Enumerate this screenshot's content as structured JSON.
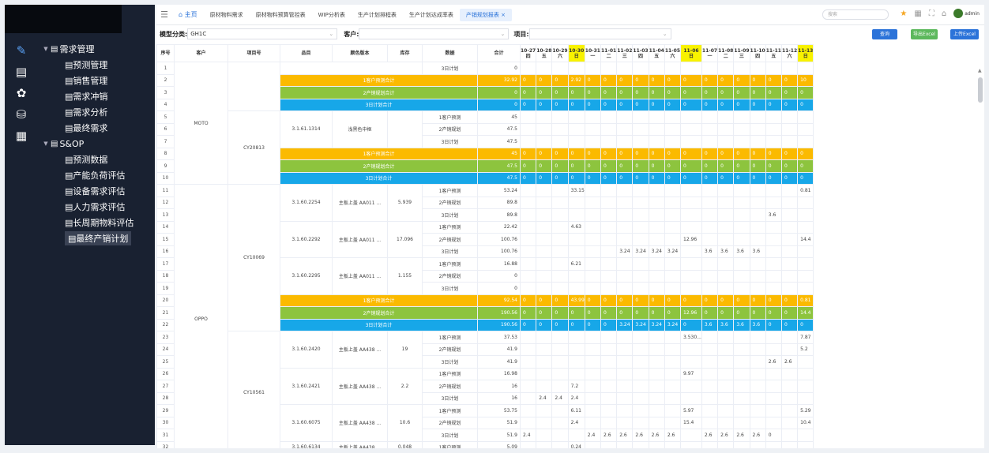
{
  "sidebar": {
    "rail_icons": [
      "edit-icon",
      "document-icon",
      "settings-icon",
      "database-icon",
      "dashboard-icon"
    ],
    "groups": [
      {
        "label": "需求管理",
        "items": [
          "预测管理",
          "销售管理",
          "需求冲销",
          "需求分析",
          "最终需求"
        ]
      },
      {
        "label": "S&OP",
        "items": [
          "预测数据",
          "产能负荷评估",
          "设备需求评估",
          "人力需求评估",
          "长周期物料评估",
          "最终产销计划"
        ]
      }
    ]
  },
  "header": {
    "tabs": [
      "主页",
      "原材物料需求",
      "原材物料预算管控表",
      "WIP分析表",
      "生产计划排程表",
      "生产计划达成率表",
      "产销规划报表"
    ],
    "search_placeholder": "搜索",
    "user": "admin"
  },
  "filters": {
    "model_label": "模型分类:",
    "model_value": "GH1C",
    "customer_label": "客户:",
    "customer_value": "",
    "project_label": "项目:",
    "project_value": ""
  },
  "buttons": {
    "query": "查询",
    "export": "导出Excel",
    "upload": "上传Excel"
  },
  "colors": {
    "orange": "#fbba00",
    "green": "#8dc43e",
    "blue": "#17a7e8",
    "highlight": "#f8f200",
    "primary": "#2b73d9",
    "export": "#5cb85c"
  },
  "table": {
    "columns": [
      "序号",
      "客户",
      "项目号",
      "品目",
      "颜色版本",
      "库存",
      "数据",
      "合计"
    ],
    "dates": [
      [
        "10-27",
        "四"
      ],
      [
        "10-28",
        "五"
      ],
      [
        "10-29",
        "六"
      ],
      [
        "10-30",
        "日"
      ],
      [
        "10-31",
        "一"
      ],
      [
        "11-01",
        "二"
      ],
      [
        "11-02",
        "三"
      ],
      [
        "11-03",
        "四"
      ],
      [
        "11-04",
        "五"
      ],
      [
        "11-05",
        "六"
      ],
      [
        "11-06",
        "日"
      ],
      [
        "11-07",
        "一"
      ],
      [
        "11-08",
        "二"
      ],
      [
        "11-09",
        "三"
      ],
      [
        "11-10",
        "四"
      ],
      [
        "11-11",
        "五"
      ],
      [
        "11-12",
        "六"
      ],
      [
        "11-13",
        "日"
      ]
    ],
    "highlight_dates": [
      3,
      10,
      17
    ],
    "rows": [
      {
        "t": "x",
        "label": "3日计划",
        "total": "0"
      },
      {
        "t": "s1",
        "label": "1客户预测合计",
        "total": "32.92",
        "v": [
          "0",
          "0",
          "0",
          "2.92",
          "0",
          "0",
          "0",
          "0",
          "0",
          "0",
          "0",
          "0",
          "0",
          "0",
          "0",
          "0",
          "0",
          "10"
        ]
      },
      {
        "t": "s2",
        "label": "2产销规划合计",
        "total": "0",
        "v": [
          "0",
          "0",
          "0",
          "0",
          "0",
          "0",
          "0",
          "0",
          "0",
          "0",
          "0",
          "0",
          "0",
          "0",
          "0",
          "0",
          "0",
          "0"
        ]
      },
      {
        "t": "s3",
        "label": "3日计划合计",
        "total": "0",
        "v": [
          "0",
          "0",
          "0",
          "0",
          "0",
          "0",
          "0",
          "0",
          "0",
          "0",
          "0",
          "0",
          "0",
          "0",
          "0",
          "0",
          "0",
          "0"
        ]
      },
      {
        "t": "d",
        "item": "3.1.61.1314",
        "color": "浅黑色中框",
        "stock": "",
        "label": "1客户预测",
        "total": "45",
        "v": {}
      },
      {
        "t": "d",
        "label": "2产销规划",
        "total": "47.5",
        "v": {}
      },
      {
        "t": "d",
        "label": "3日计划",
        "total": "47.5",
        "v": {}
      },
      {
        "t": "s1",
        "label": "1客户预测合计",
        "total": "45",
        "v": [
          "0",
          "0",
          "0",
          "0",
          "0",
          "0",
          "0",
          "0",
          "0",
          "0",
          "0",
          "0",
          "0",
          "0",
          "0",
          "0",
          "0",
          "0"
        ]
      },
      {
        "t": "s2",
        "label": "2产销规划合计",
        "total": "47.5",
        "v": [
          "0",
          "0",
          "0",
          "0",
          "0",
          "0",
          "0",
          "0",
          "0",
          "0",
          "0",
          "0",
          "0",
          "0",
          "0",
          "0",
          "0",
          "0"
        ]
      },
      {
        "t": "s3",
        "label": "3日计划合计",
        "total": "47.5",
        "v": [
          "0",
          "0",
          "0",
          "0",
          "0",
          "0",
          "0",
          "0",
          "0",
          "0",
          "0",
          "0",
          "0",
          "0",
          "0",
          "0",
          "0",
          "0"
        ]
      },
      {
        "t": "d",
        "item": "3.1.60.2254",
        "color": "主板上盖 AA011 ...",
        "stock": "5.939",
        "label": "1客户预测",
        "total": "53.24",
        "v": {
          "3": "33.15",
          "17": "0.81"
        }
      },
      {
        "t": "d",
        "label": "2产销规划",
        "total": "89.8",
        "v": {}
      },
      {
        "t": "d",
        "label": "3日计划",
        "total": "89.8",
        "v": {
          "15": "3.6"
        }
      },
      {
        "t": "d",
        "item": "3.1.60.2292",
        "color": "主板上盖 AA011 ...",
        "stock": "17.096",
        "label": "1客户预测",
        "total": "22.42",
        "v": {
          "3": "4.63"
        }
      },
      {
        "t": "d",
        "label": "2产销规划",
        "total": "100.76",
        "v": {
          "10": "12.96",
          "17": "14.4"
        }
      },
      {
        "t": "d",
        "label": "3日计划",
        "total": "100.76",
        "v": {
          "6": "3.24",
          "7": "3.24",
          "8": "3.24",
          "9": "3.24",
          "11": "3.6",
          "12": "3.6",
          "13": "3.6",
          "14": "3.6"
        }
      },
      {
        "t": "d",
        "item": "3.1.60.2295",
        "color": "主板上盖 AA011 ...",
        "stock": "1.155",
        "label": "1客户预测",
        "total": "16.88",
        "v": {
          "3": "6.21"
        }
      },
      {
        "t": "d",
        "label": "2产销规划",
        "total": "0",
        "v": {}
      },
      {
        "t": "d",
        "label": "3日计划",
        "total": "0",
        "v": {}
      },
      {
        "t": "s1",
        "label": "1客户预测合计",
        "total": "92.54",
        "v": [
          "0",
          "0",
          "0",
          "43.99",
          "0",
          "0",
          "0",
          "0",
          "0",
          "0",
          "0",
          "0",
          "0",
          "0",
          "0",
          "0",
          "0",
          "0.81"
        ]
      },
      {
        "t": "s2",
        "label": "2产销规划合计",
        "total": "190.56",
        "v": [
          "0",
          "0",
          "0",
          "0",
          "0",
          "0",
          "0",
          "0",
          "0",
          "0",
          "12.96",
          "0",
          "0",
          "0",
          "0",
          "0",
          "0",
          "14.4"
        ]
      },
      {
        "t": "s3",
        "label": "3日计划合计",
        "total": "190.56",
        "v": [
          "0",
          "0",
          "0",
          "0",
          "0",
          "0",
          "3.24",
          "3.24",
          "3.24",
          "3.24",
          "0",
          "3.6",
          "3.6",
          "3.6",
          "3.6",
          "0",
          "0",
          "0"
        ]
      },
      {
        "t": "d",
        "item": "3.1.60.2420",
        "color": "主板上盖 AA438 ...",
        "stock": "19",
        "label": "1客户预测",
        "total": "37.53",
        "v": {
          "10": "3.530...",
          "17": "7.87"
        }
      },
      {
        "t": "d",
        "label": "2产销规划",
        "total": "41.9",
        "v": {
          "17": "5.2"
        }
      },
      {
        "t": "d",
        "label": "3日计划",
        "total": "41.9",
        "v": {
          "15": "2.6",
          "16": "2.6"
        }
      },
      {
        "t": "d",
        "item": "3.1.60.2421",
        "color": "主板上盖 AA438 ...",
        "stock": "2.2",
        "label": "1客户预测",
        "total": "16.98",
        "v": {
          "10": "9.97"
        }
      },
      {
        "t": "d",
        "label": "2产销规划",
        "total": "16",
        "v": {
          "3": "7.2"
        }
      },
      {
        "t": "d",
        "label": "3日计划",
        "total": "16",
        "v": {
          "1": "2.4",
          "2": "2.4",
          "3": "2.4"
        }
      },
      {
        "t": "d",
        "item": "3.1.60.6075",
        "color": "主板上盖 AA438 ...",
        "stock": "10.6",
        "label": "1客户预测",
        "total": "53.75",
        "v": {
          "3": "6.11",
          "10": "5.97",
          "17": "5.29"
        }
      },
      {
        "t": "d",
        "label": "2产销规划",
        "total": "51.9",
        "v": {
          "3": "2.4",
          "10": "15.4",
          "17": "10.4"
        }
      },
      {
        "t": "d",
        "label": "3日计划",
        "total": "51.9",
        "v": {
          "0": "2.4",
          "4": "2.4",
          "5": "2.6",
          "6": "2.6",
          "7": "2.6",
          "8": "2.6",
          "9": "2.6",
          "11": "2.6",
          "12": "2.6",
          "13": "2.6",
          "14": "2.6",
          "15": "0"
        }
      },
      {
        "t": "d",
        "item": "3.1.60.6134",
        "color": "主板上盖 AA438 ...",
        "stock": "0.048",
        "label": "1客户预测",
        "total": "5.09",
        "v": {
          "3": "0.24"
        }
      }
    ],
    "merges": {
      "customer": [
        {
          "start": 0,
          "span": 10,
          "text": "MOTO"
        },
        {
          "start": 10,
          "span": 22,
          "text": "OPPO"
        }
      ],
      "project": [
        {
          "start": 0,
          "span": 4,
          "text": ""
        },
        {
          "start": 4,
          "span": 6,
          "text": "CY20813"
        },
        {
          "start": 10,
          "span": 12,
          "text": "CY10069"
        },
        {
          "start": 22,
          "span": 10,
          "text": "CY10561"
        }
      ],
      "item_spans": {
        "4": 3,
        "10": 3,
        "13": 3,
        "16": 3,
        "22": 3,
        "25": 3,
        "28": 3,
        "31": 1
      },
      "summary_mid_rows": [
        1,
        2,
        3,
        7,
        8,
        9,
        19,
        20,
        21
      ]
    }
  }
}
